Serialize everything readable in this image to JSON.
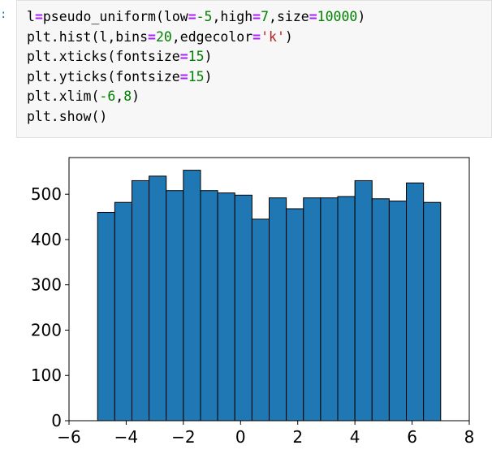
{
  "code": [
    [
      "l",
      "=",
      "pseudo_uniform(low",
      "=",
      "-5",
      ",high",
      "=",
      "7",
      ",size",
      "=",
      "10000",
      ")"
    ],
    [
      "plt.hist(l,bins",
      "=",
      "20",
      ",edgecolor",
      "=",
      "'k'",
      ")"
    ],
    [
      "plt.xticks(fontsize",
      "=",
      "15",
      ")"
    ],
    [
      "plt.yticks(fontsize",
      "=",
      "15",
      ")"
    ],
    [
      "plt.xlim(",
      "-6",
      ",",
      "8",
      ")"
    ],
    [
      "plt.show()"
    ]
  ],
  "chart_data": {
    "type": "histogram",
    "bins": [
      -5,
      -4.4,
      -3.8,
      -3.2,
      -2.6,
      -2,
      -1.4,
      -0.8,
      -0.2,
      0.4,
      1,
      1.6,
      2.2,
      2.8,
      3.4,
      4,
      4.6,
      5.2,
      5.8,
      6.4,
      7
    ],
    "values": [
      460,
      482,
      530,
      540,
      508,
      553,
      508,
      503,
      498,
      445,
      492,
      468,
      492,
      492,
      495,
      530,
      490,
      485,
      525,
      482
    ],
    "color": "#1f77b4",
    "edgecolor": "#000000",
    "xlim": [
      -6,
      8
    ],
    "xticks": [
      {
        "value": -6,
        "label": "−6"
      },
      {
        "value": -4,
        "label": "−4"
      },
      {
        "value": -2,
        "label": "−2"
      },
      0,
      2,
      4,
      6,
      8
    ],
    "ylim": [
      0,
      581
    ],
    "yticks": [
      0,
      100,
      200,
      300,
      400,
      500
    ]
  }
}
